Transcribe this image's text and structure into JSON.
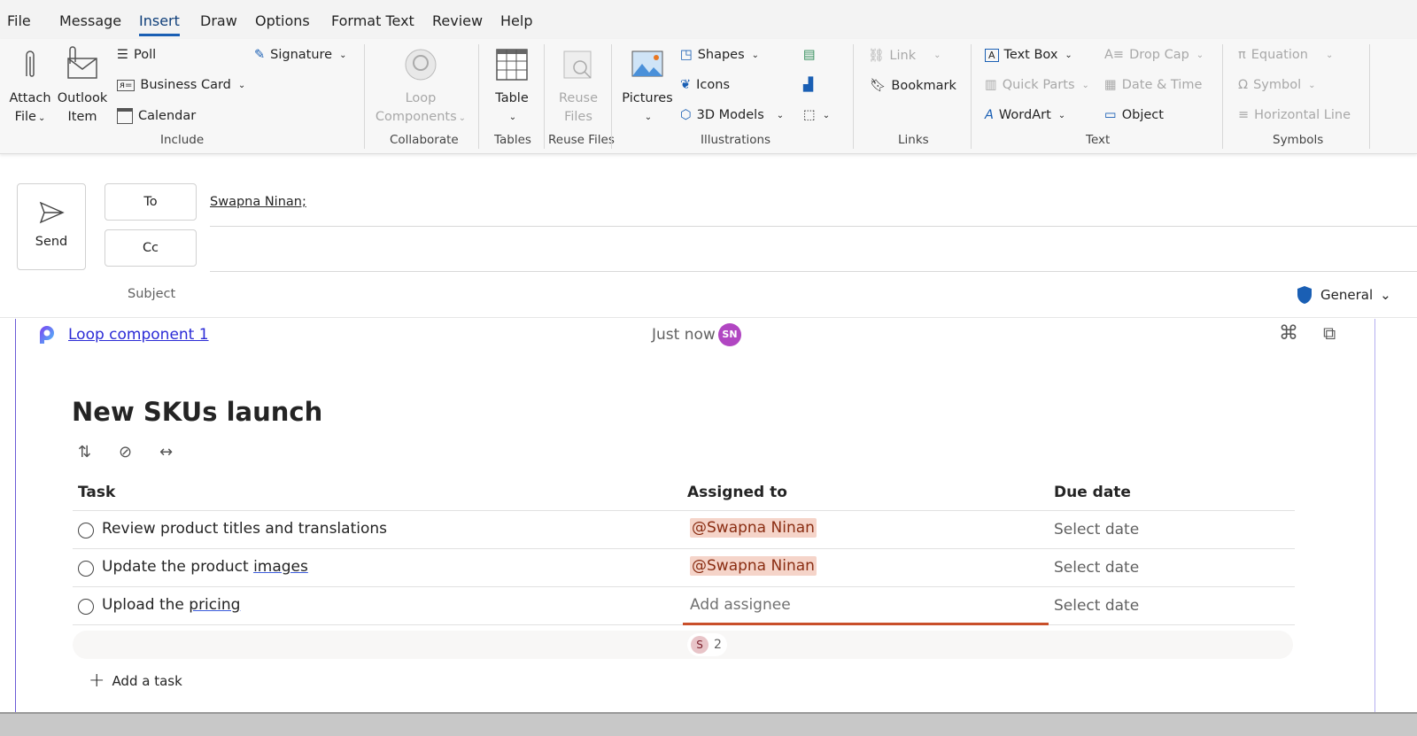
{
  "menu": {
    "tabs": [
      "File",
      "Message",
      "Insert",
      "Draw",
      "Options",
      "Format Text",
      "Review",
      "Help"
    ],
    "active": "Insert"
  },
  "ribbon": {
    "include": {
      "attach_file": [
        "Attach",
        "File"
      ],
      "outlook_item": [
        "Outlook",
        "Item"
      ],
      "poll": "Poll",
      "business_card": "Business Card",
      "calendar": "Calendar",
      "signature": "Signature",
      "label": "Include"
    },
    "collaborate": {
      "loop_components": [
        "Loop",
        "Components"
      ],
      "label": "Collaborate"
    },
    "tables": {
      "table": "Table",
      "label": "Tables"
    },
    "reuse": {
      "reuse_files": [
        "Reuse",
        "Files"
      ],
      "label": "Reuse Files"
    },
    "illustrations": {
      "pictures": "Pictures",
      "shapes": "Shapes",
      "icons": "Icons",
      "models": "3D Models",
      "label": "Illustrations"
    },
    "links": {
      "link": "Link",
      "bookmark": "Bookmark",
      "label": "Links"
    },
    "text": {
      "text_box": "Text Box",
      "quick_parts": "Quick Parts",
      "wordart": "WordArt",
      "drop_cap": "Drop Cap",
      "date_time": "Date & Time",
      "object": "Object",
      "label": "Text"
    },
    "symbols": {
      "equation": "Equation",
      "symbol": "Symbol",
      "horizontal_line": "Horizontal Line",
      "label": "Symbols"
    }
  },
  "compose": {
    "send": "Send",
    "to": "To",
    "cc": "Cc",
    "to_value": "Swapna Ninan;",
    "subject": "Subject",
    "sensitivity": "General"
  },
  "loop": {
    "name": "Loop component 1",
    "timestamp": "Just now",
    "avatar": "SN",
    "title": "New SKUs launch",
    "columns": [
      "Task",
      "Assigned to",
      "Due date"
    ],
    "rows": [
      {
        "task_pre": "Review product titles and translations",
        "task_link": "",
        "assignee": "@Swapna Ninan",
        "due": "Select date"
      },
      {
        "task_pre": "Update the product ",
        "task_link": "images",
        "assignee": "@Swapna Ninan",
        "due": "Select date"
      },
      {
        "task_pre": "Upload the ",
        "task_link": "pricing",
        "assignee": "",
        "assignee_placeholder": "Add assignee",
        "due": "Select date"
      }
    ],
    "presence_avatar": "S",
    "presence_count": "2",
    "add_task": "Add a task"
  },
  "colors": {
    "accent": "#1a5fb4",
    "mention_bg": "#f5d4c9",
    "active_underline": "#c94f2a",
    "avatar": "#b146c2"
  }
}
